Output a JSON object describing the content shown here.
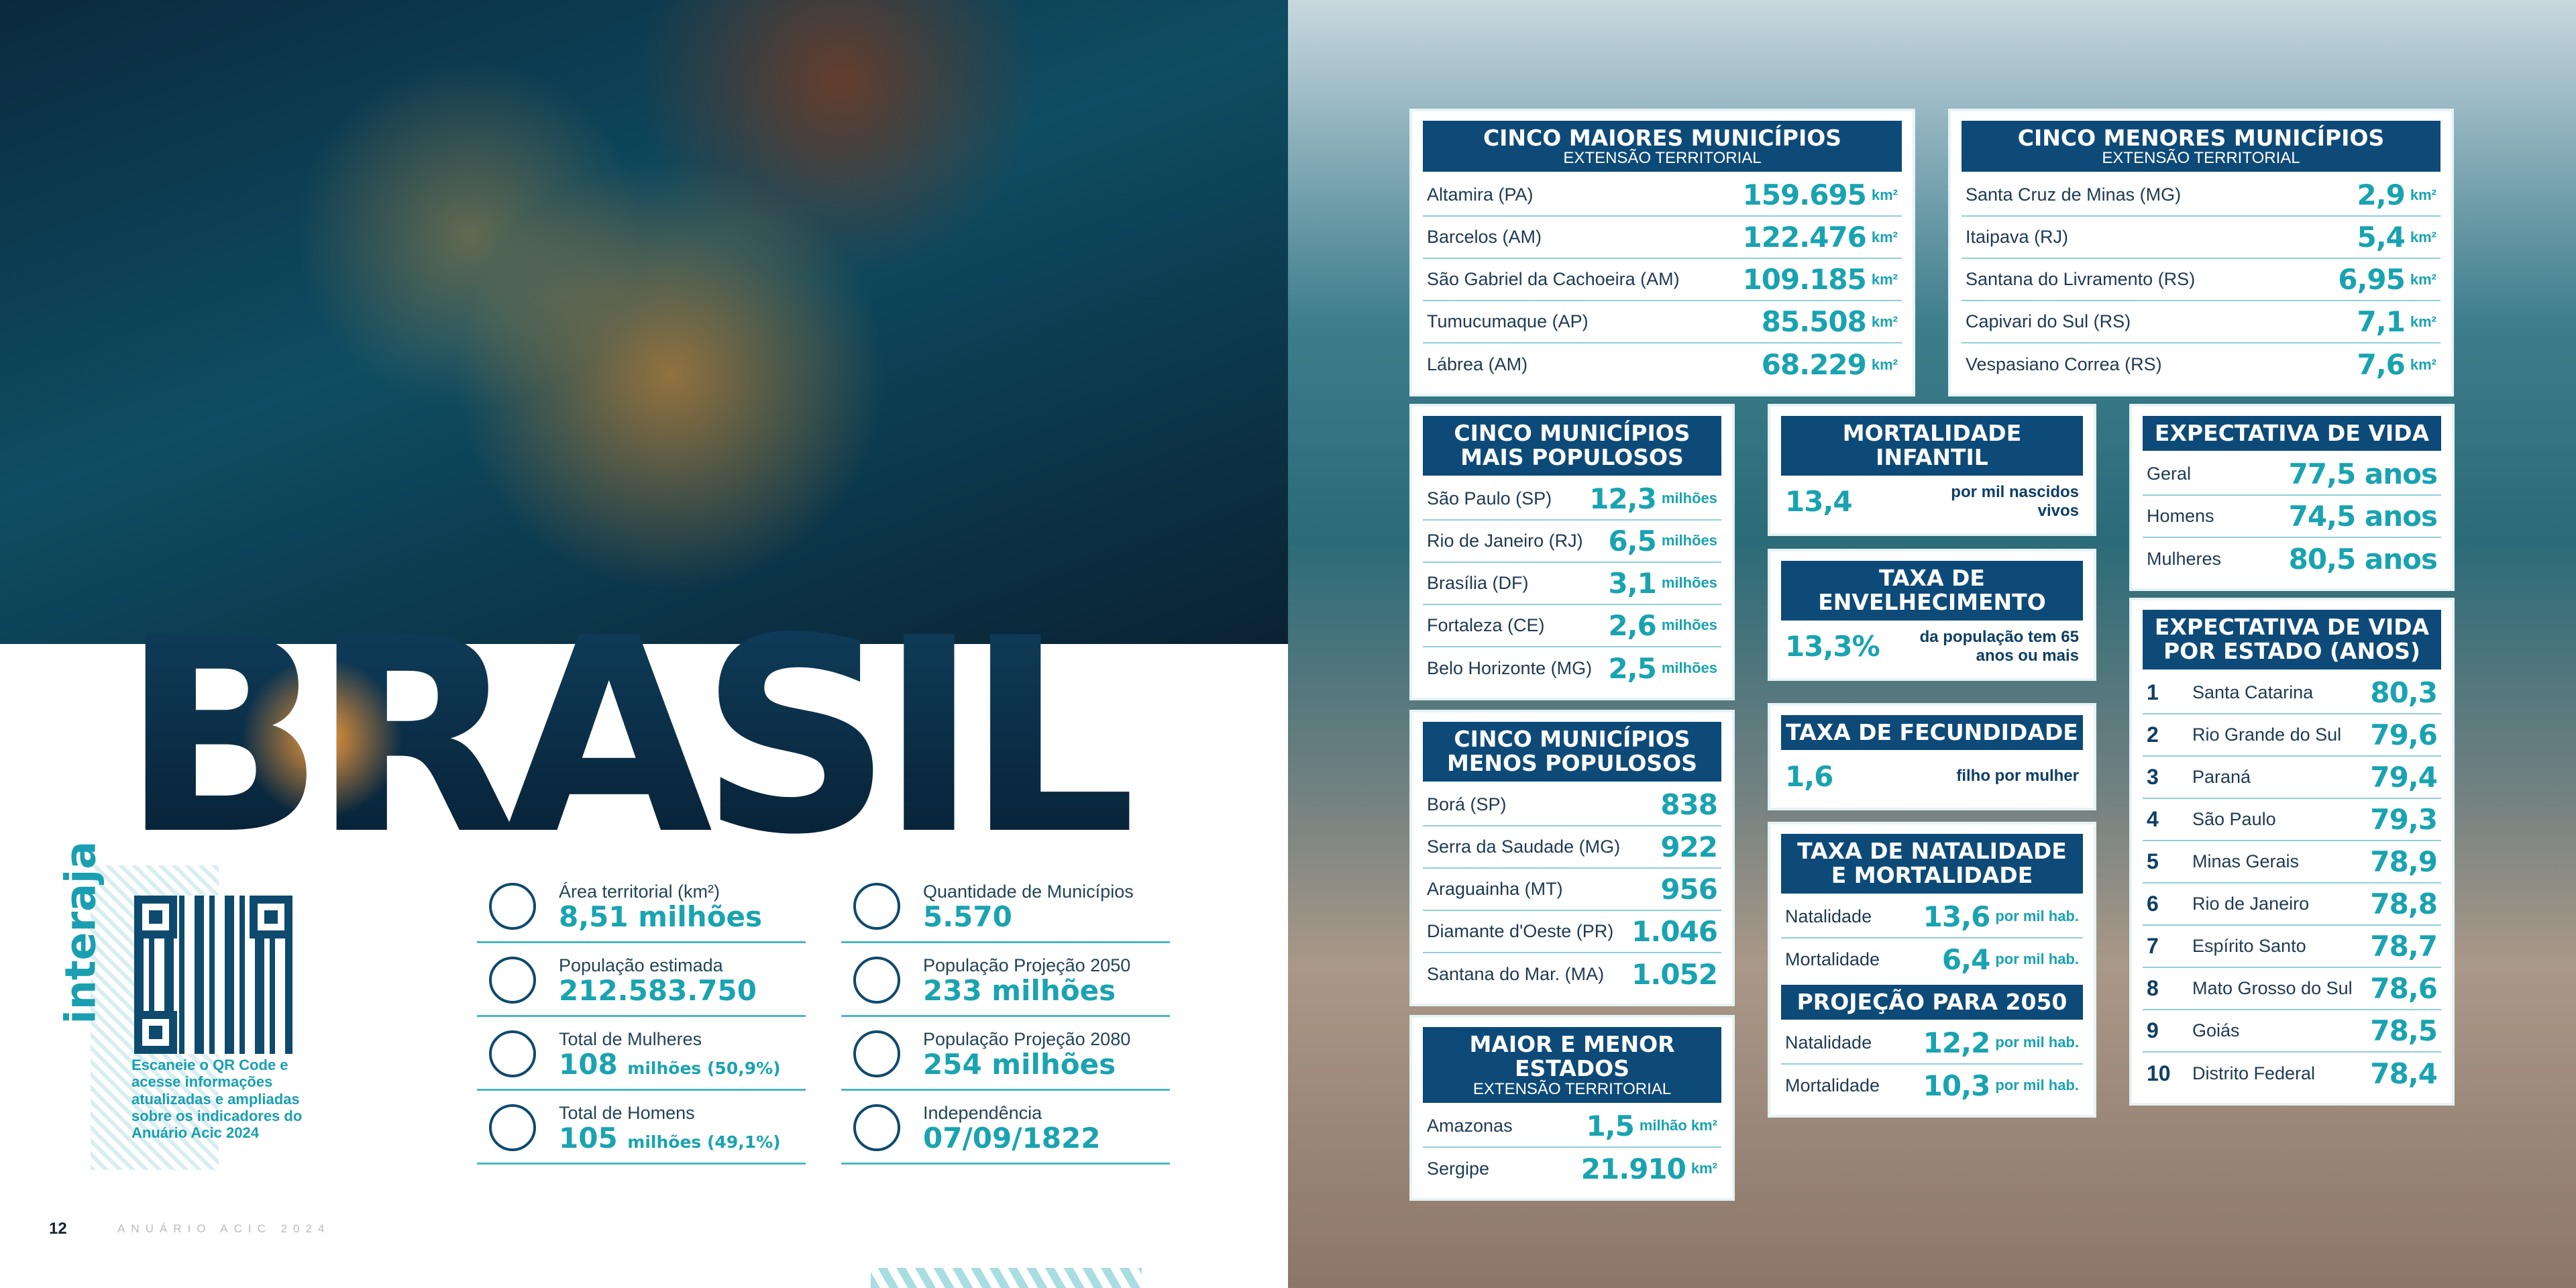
{
  "left": {
    "title": "BRASIL",
    "interaja": {
      "label": "interaja",
      "caption": "Escaneie o QR Code e acesse informações atualizadas e ampliadas sobre os indicadores do Anuário Acic 2024"
    },
    "stats": [
      {
        "label": "Área territorial (km²)",
        "value": "8,51 milhões"
      },
      {
        "label": "Quantidade de Municípios",
        "value": "5.570"
      },
      {
        "label": "População estimada",
        "value": "212.583.750"
      },
      {
        "label": "População Projeção 2050",
        "value": "233 milhões"
      },
      {
        "label": "Total de Mulheres",
        "value": "108",
        "unit": "milhões (50,9%)"
      },
      {
        "label": "População Projeção 2080",
        "value": "254 milhões"
      },
      {
        "label": "Total de Homens",
        "value": "105",
        "unit": "milhões (49,1%)"
      },
      {
        "label": "Independência",
        "value": "07/09/1822"
      }
    ],
    "footer": {
      "page": "12",
      "publication": "ANUÁRIO ACIC 2024"
    }
  },
  "panels": [
    {
      "blocks": [
        {
          "title": [
            "CINCO MAIORES MUNICÍPIOS"
          ],
          "subtitle": "EXTENSÃO TERRITORIAL",
          "rows": [
            {
              "label": "Altamira (PA)",
              "value": "159.695",
              "unit": "km²"
            },
            {
              "label": "Barcelos (AM)",
              "value": "122.476",
              "unit": "km²"
            },
            {
              "label": "São Gabriel da Cachoeira (AM)",
              "value": "109.185",
              "unit": "km²"
            },
            {
              "label": "Tumucumaque (AP)",
              "value": "85.508",
              "unit": "km²"
            },
            {
              "label": "Lábrea (AM)",
              "value": "68.229",
              "unit": "km²"
            }
          ]
        }
      ]
    },
    {
      "blocks": [
        {
          "title": [
            "CINCO MENORES MUNICÍPIOS"
          ],
          "subtitle": "EXTENSÃO TERRITORIAL",
          "rows": [
            {
              "label": "Santa Cruz de Minas (MG)",
              "value": "2,9",
              "unit": "km²"
            },
            {
              "label": "Itaipava (RJ)",
              "value": "5,4",
              "unit": "km²"
            },
            {
              "label": "Santana do Livramento (RS)",
              "value": "6,95",
              "unit": "km²"
            },
            {
              "label": "Capivari do Sul (RS)",
              "value": "7,1",
              "unit": "km²"
            },
            {
              "label": "Vespasiano Correa (RS)",
              "value": "7,6",
              "unit": "km²"
            }
          ]
        }
      ]
    },
    {
      "blocks": [
        {
          "title": [
            "CINCO MUNICÍPIOS",
            "MAIS POPULOSOS"
          ],
          "rows": [
            {
              "label": "São Paulo (SP)",
              "value": "12,3",
              "unit": "milhões"
            },
            {
              "label": "Rio de Janeiro (RJ)",
              "value": "6,5",
              "unit": "milhões"
            },
            {
              "label": "Brasília (DF)",
              "value": "3,1",
              "unit": "milhões"
            },
            {
              "label": "Fortaleza (CE)",
              "value": "2,6",
              "unit": "milhões"
            },
            {
              "label": "Belo Horizonte (MG)",
              "value": "2,5",
              "unit": "milhões"
            }
          ]
        }
      ]
    },
    {
      "blocks": [
        {
          "title": [
            "CINCO MUNICÍPIOS",
            "MENOS POPULOSOS"
          ],
          "rows": [
            {
              "label": "Borá (SP)",
              "value": "838"
            },
            {
              "label": "Serra da Saudade (MG)",
              "value": "922"
            },
            {
              "label": "Araguainha (MT)",
              "value": "956"
            },
            {
              "label": "Diamante d'Oeste (PR)",
              "value": "1.046"
            },
            {
              "label": "Santana do Mar. (MA)",
              "value": "1.052"
            }
          ]
        }
      ]
    },
    {
      "blocks": [
        {
          "title": [
            "MAIOR E MENOR ESTADOS"
          ],
          "subtitle": "EXTENSÃO TERRITORIAL",
          "rows": [
            {
              "label": "Amazonas",
              "value": "1,5",
              "unit": "milhão km²"
            },
            {
              "label": "Sergipe",
              "value": "21.910",
              "unit": "km²"
            }
          ]
        }
      ]
    },
    {
      "blocks": [
        {
          "title": [
            "MORTALIDADE",
            "INFANTIL"
          ],
          "rows": [
            {
              "value": "13,4",
              "unit": "por mil nascidos vivos"
            }
          ]
        }
      ]
    },
    {
      "blocks": [
        {
          "title": [
            "TAXA DE",
            "ENVELHECIMENTO"
          ],
          "rows": [
            {
              "value": "13,3%",
              "unit": "da população tem 65 anos ou mais"
            }
          ]
        }
      ]
    },
    {
      "blocks": [
        {
          "title": [
            "TAXA DE FECUNDIDADE"
          ],
          "rows": [
            {
              "value": "1,6",
              "unit": "filho por mulher"
            }
          ]
        }
      ]
    },
    {
      "blocks": [
        {
          "title": [
            "TAXA DE NATALIDADE",
            "E MORTALIDADE"
          ],
          "rows": [
            {
              "label": "Natalidade",
              "value": "13,6",
              "unit": "por mil hab."
            },
            {
              "label": "Mortalidade",
              "value": "6,4",
              "unit": "por mil hab."
            }
          ]
        },
        {
          "title": [
            "PROJEÇÃO PARA 2050"
          ],
          "rows": [
            {
              "label": "Natalidade",
              "value": "12,2",
              "unit": "por mil hab."
            },
            {
              "label": "Mortalidade",
              "value": "10,3",
              "unit": "por mil hab."
            }
          ]
        }
      ]
    },
    {
      "blocks": [
        {
          "title": [
            "EXPECTATIVA DE VIDA"
          ],
          "rows": [
            {
              "label": "Geral",
              "value": "77,5 anos"
            },
            {
              "label": "Homens",
              "value": "74,5 anos"
            },
            {
              "label": "Mulheres",
              "value": "80,5 anos"
            }
          ]
        }
      ]
    },
    {
      "blocks": [
        {
          "title": [
            "EXPECTATIVA DE VIDA",
            "POR ESTADO (ANOS)"
          ],
          "rows": [
            {
              "rank": "1",
              "label": "Santa Catarina",
              "value": "80,3"
            },
            {
              "rank": "2",
              "label": "Rio Grande do Sul",
              "value": "79,6"
            },
            {
              "rank": "3",
              "label": "Paraná",
              "value": "79,4"
            },
            {
              "rank": "4",
              "label": "São Paulo",
              "value": "79,3"
            },
            {
              "rank": "5",
              "label": "Minas Gerais",
              "value": "78,9"
            },
            {
              "rank": "6",
              "label": "Rio de Janeiro",
              "value": "78,8"
            },
            {
              "rank": "7",
              "label": "Espírito Santo",
              "value": "78,7"
            },
            {
              "rank": "8",
              "label": "Mato Grosso do Sul",
              "value": "78,6"
            },
            {
              "rank": "9",
              "label": "Goiás",
              "value": "78,5"
            },
            {
              "rank": "10",
              "label": "Distrito Federal",
              "value": "78,4"
            }
          ]
        }
      ]
    }
  ]
}
